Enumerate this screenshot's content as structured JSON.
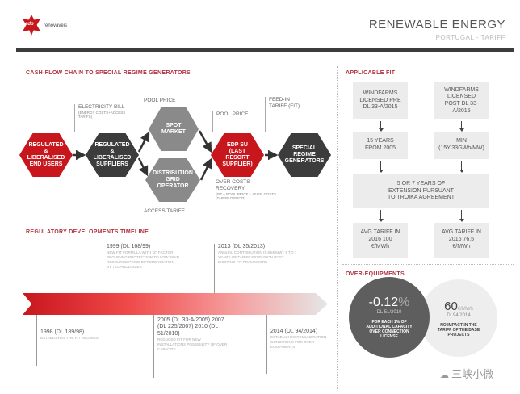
{
  "header": {
    "logo_text": "renováveis",
    "logo_mark": "edp",
    "title": "RENEWABLE ENERGY",
    "subtitle": "PORTUGAL - TARIFF"
  },
  "cashflow": {
    "title": "CASH-FLOW CHAIN TO SPECIAL REGIME GENERATORS",
    "nodes": [
      "REGULATED & LIBERALISED END USERS",
      "REGULATED & LIBERALISED SUPPLIERS",
      "SPOT MARKET",
      "DISTRIBUTION GRID OPERATOR",
      "EDP SU (LAST RESORT SUPPLIER)",
      "SPECIAL REGIME GENERATORS"
    ],
    "labels": {
      "bill": "ELECTRICITY BILL",
      "bill_note": "(ENERGY COSTS+ACCESS TARIFS)",
      "pool1": "POOL PRICE",
      "pool2": "POOL PRICE",
      "fit": "FEED-IN TARIFF (FIT)",
      "over": "OVER COSTS RECOVERY",
      "over_note": "(FIT – POOL PRICE = OVER COSTS (TARIFF DEFICIT)",
      "access": "ACCESS TARIFF"
    }
  },
  "timeline": {
    "title": "REGULATORY DEVELOPMENTS TIMELINE",
    "events": [
      {
        "head": "1999 (DL 168/99)",
        "text": "NEW FIT FORMULA WITH \"Z\" FACTOR PROVIDING PROTECTION TO LOW WIND RESOURCE PRICE DIFFERENCIATION BY TECHNOLOGIES"
      },
      {
        "head": "2013 (DL 35/2013)",
        "text": "ANNUAL CONTRIBUTION (5.8 k€/MW): 5 TO 7 YEARS OF TARIFF EXTENSION POST EXISTING FIT FRAMEWORK"
      },
      {
        "head": "1998 (DL 189/98)",
        "text": "ESTABLISHES THE FIT REGIMES"
      },
      {
        "head": "2005 (DL 33-A/2005) 2007 (DL 225/2007) 2010 (DL 51/2010)",
        "text": "REDUCED FIT FOR NEW INSTALLATIONS POSSIBILITY OF OVER CAPACITY"
      },
      {
        "head": "2014 (DL 94/2014)",
        "text": "ESTABLISHES REMUNERATION CONDITIONS FOR OVER-EQUIPMENTS"
      }
    ]
  },
  "fit": {
    "title": "APPLICABLE FIT",
    "pre": "WINDFARMS LICENSED PRE DL 33-A/2015",
    "post": "WINDFARMS LICENSED POST DL 33-A/2015",
    "years": "15 YEARS FROM 2005",
    "min": "MIN (15Y;33GWh/MW)",
    "ext": "5 OR 7 YEARS OF EXTENSION PURSUANT TO TROIKA AGREEMENT",
    "avg1": "AVG TARIFF IN 2016 100 €/MWh",
    "avg2": "AVG TARIFF IN 2016 76,5 €/MWh"
  },
  "over": {
    "title": "OVER-EQUIPMENTS",
    "c1_value": "-0.12",
    "c1_unit": "%",
    "c1_ref": "DL 51/2010",
    "c1_text": "FOR EACH 1% OF ADDITIONAL CAPACITY OVER CONNECTION LICENSE",
    "c2_value": "60",
    "c2_unit": "€/MWh",
    "c2_ref": "DL94/2014",
    "c2_text": "NO IMPACT IN THE TARIFF OF THE BASE PROJECTS"
  },
  "watermark": "三峡小微",
  "colors": {
    "red": "#c8161d",
    "dark": "#3c3c3c",
    "grey": "#8a8a8a"
  }
}
